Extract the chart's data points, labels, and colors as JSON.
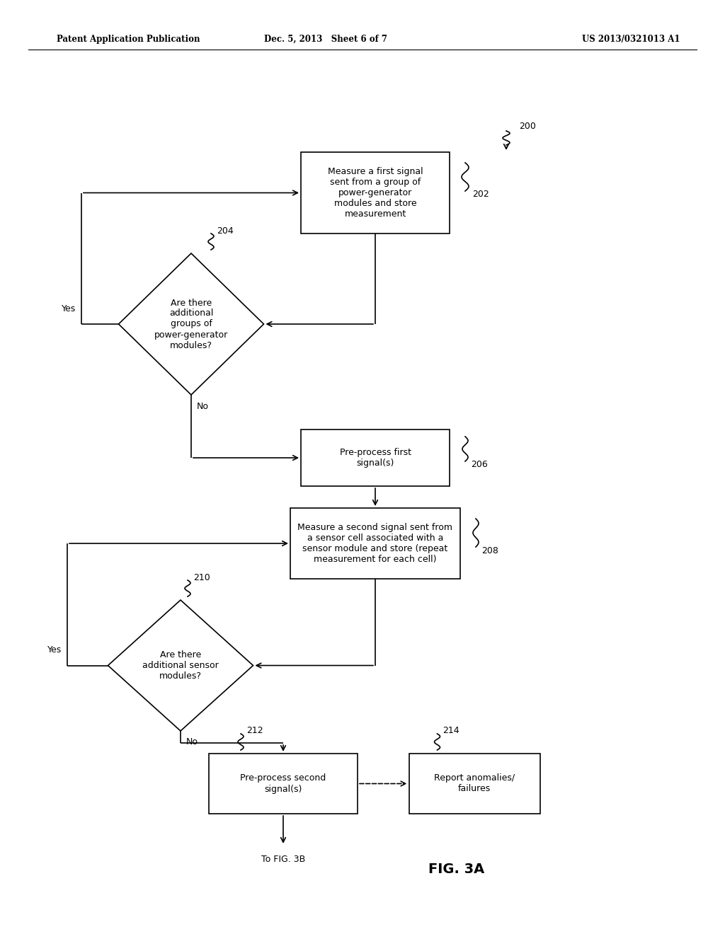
{
  "bg_color": "#ffffff",
  "line_color": "#000000",
  "header_left": "Patent Application Publication",
  "header_mid": "Dec. 5, 2013   Sheet 6 of 7",
  "header_right": "US 2013/0321013 A1",
  "fig_label": "FIG. 3A",
  "footer_text": "To FIG. 3B",
  "box202_text": "Measure a first signal\nsent from a group of\npower-generator\nmodules and store\nmeasurement",
  "diamond204_text": "Are there\nadditional\ngroups of\npower-generator\nmodules?",
  "box206_text": "Pre-process first\nsignal(s)",
  "box208_text": "Measure a second signal sent from\na sensor cell associated with a\nsensor module and store (repeat\nmeasurement for each cell)",
  "diamond210_text": "Are there\nadditional sensor\nmodules?",
  "box212_text": "Pre-process second\nsignal(s)",
  "box214_text": "Report anomalies/\nfailures",
  "label200": "200",
  "label202": "202",
  "label204": "204",
  "label206": "206",
  "label208": "208",
  "label210": "210",
  "label212": "212",
  "label214": "214",
  "yes_label": "Yes",
  "no_label": "No"
}
